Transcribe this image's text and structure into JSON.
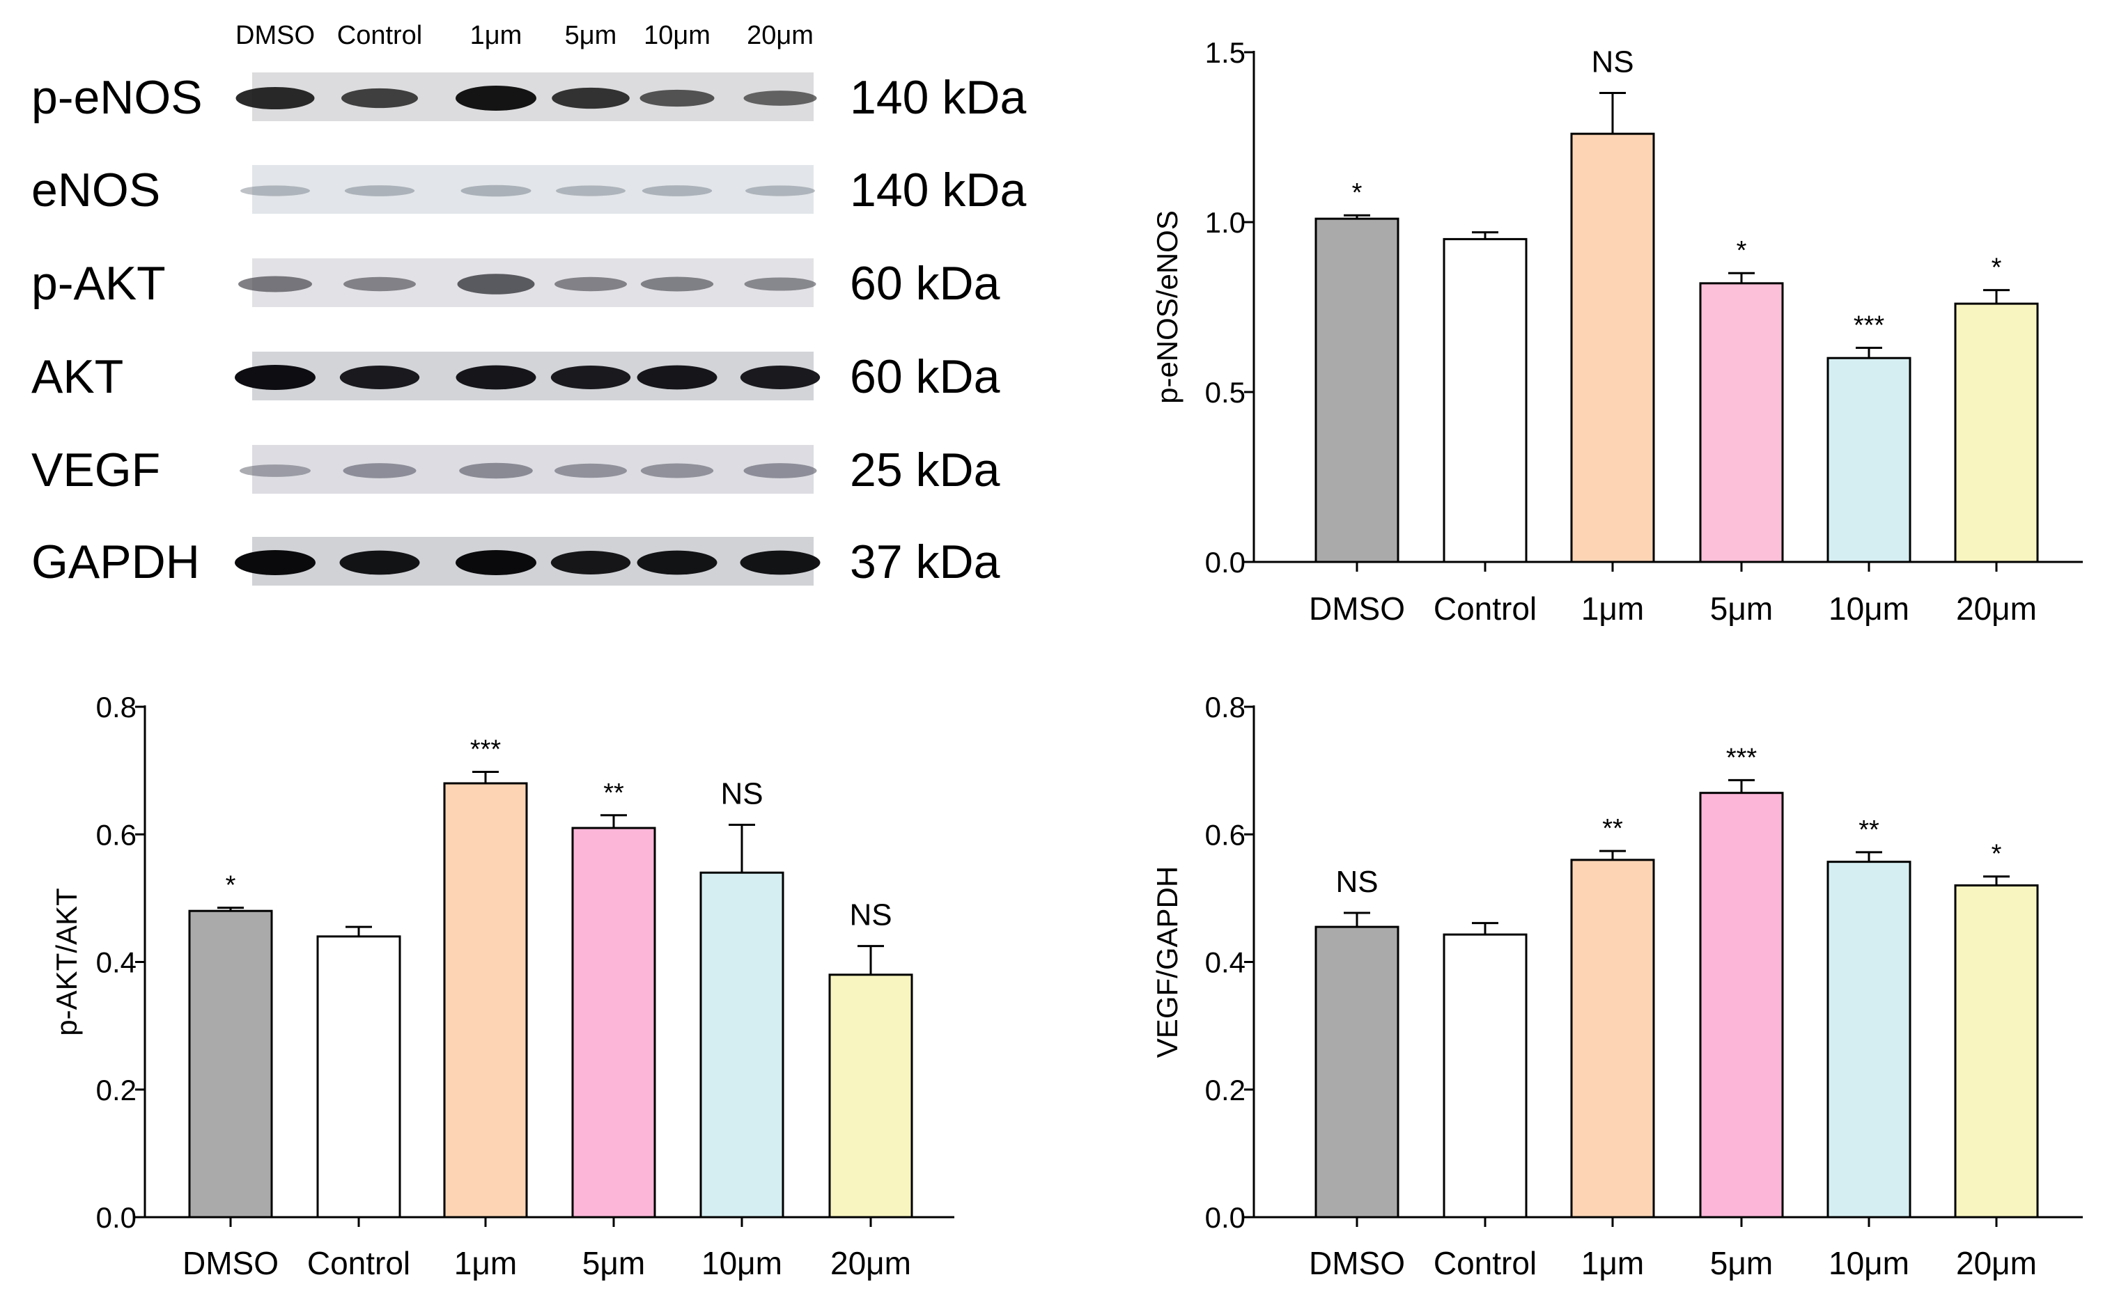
{
  "western_blot": {
    "lanes": [
      "DMSO",
      "Control",
      "1μm",
      "5μm",
      "10μm",
      "20μm"
    ],
    "rows": [
      {
        "protein": "p-eNOS",
        "size": "140 kDa",
        "band_intensity": [
          0.85,
          0.7,
          1.0,
          0.78,
          0.55,
          0.45
        ],
        "band_color": "#141414",
        "strip_color": "#dcdcde"
      },
      {
        "protein": "eNOS",
        "size": "140 kDa",
        "band_intensity": [
          0.2,
          0.22,
          0.25,
          0.2,
          0.22,
          0.2
        ],
        "band_color": "#6a7480",
        "strip_color": "#e2e6ea"
      },
      {
        "protein": "p-AKT",
        "size": "60 kDa",
        "band_intensity": [
          0.5,
          0.4,
          0.75,
          0.4,
          0.42,
          0.35
        ],
        "band_color": "#3a3a42",
        "strip_color": "#e2e2e6"
      },
      {
        "protein": "AKT",
        "size": "60 kDa",
        "band_intensity": [
          1.0,
          0.92,
          0.95,
          0.92,
          0.95,
          0.92
        ],
        "band_color": "#0e0e12",
        "strip_color": "#d2d4d8"
      },
      {
        "protein": "VEGF",
        "size": "25 kDa",
        "band_intensity": [
          0.3,
          0.45,
          0.48,
          0.4,
          0.42,
          0.45
        ],
        "band_color": "#5a5c68",
        "strip_color": "#dcdce2"
      },
      {
        "protein": "GAPDH",
        "size": "37 kDa",
        "band_intensity": [
          1.0,
          0.95,
          1.0,
          0.92,
          0.95,
          0.95
        ],
        "band_color": "#0a0a0c",
        "strip_color": "#d0d2d6"
      }
    ]
  },
  "chart_data": [
    {
      "type": "bar",
      "id": "peNOS",
      "categories": [
        "DMSO",
        "Control",
        "1μm",
        "5μm",
        "10μm",
        "20μm"
      ],
      "values": [
        1.01,
        0.95,
        1.26,
        0.82,
        0.6,
        0.76
      ],
      "errors": [
        0.01,
        0.02,
        0.12,
        0.03,
        0.03,
        0.04
      ],
      "significance": [
        "*",
        "",
        "NS",
        "*",
        "***",
        "*"
      ],
      "colors": [
        "#aaaaaa",
        "#ffffff",
        "#fdd5b5",
        "#fcc0d8",
        "#d5eef2",
        "#f8f5c0"
      ],
      "title": "",
      "xlabel": "",
      "ylabel": "p-eNOS/eNOS",
      "ylim": [
        0,
        1.5
      ],
      "yticks": [
        "0.0",
        "0.5",
        "1.0",
        "1.5"
      ],
      "grid": false
    },
    {
      "type": "bar",
      "id": "pAKT",
      "categories": [
        "DMSO",
        "Control",
        "1μm",
        "5μm",
        "10μm",
        "20μm"
      ],
      "values": [
        0.48,
        0.44,
        0.68,
        0.61,
        0.54,
        0.38
      ],
      "errors": [
        0.005,
        0.015,
        0.018,
        0.02,
        0.075,
        0.045
      ],
      "significance": [
        "*",
        "",
        "***",
        "**",
        "NS",
        "NS"
      ],
      "colors": [
        "#aaaaaa",
        "#ffffff",
        "#fdd5b5",
        "#fcb6d8",
        "#d5eef2",
        "#f8f5c0"
      ],
      "title": "",
      "xlabel": "",
      "ylabel": "p-AKT/AKT",
      "ylim": [
        0,
        0.8
      ],
      "yticks": [
        "0.0",
        "0.2",
        "0.4",
        "0.6",
        "0.8"
      ],
      "grid": false
    },
    {
      "type": "bar",
      "id": "VEGF",
      "categories": [
        "DMSO",
        "Control",
        "1μm",
        "5μm",
        "10μm",
        "20μm"
      ],
      "values": [
        0.455,
        0.443,
        0.56,
        0.665,
        0.557,
        0.52
      ],
      "errors": [
        0.022,
        0.018,
        0.014,
        0.02,
        0.015,
        0.014
      ],
      "significance": [
        "NS",
        "",
        "**",
        "***",
        "**",
        "*"
      ],
      "colors": [
        "#aaaaaa",
        "#ffffff",
        "#fdd5b5",
        "#fcb6d8",
        "#d5eef2",
        "#f8f5c0"
      ],
      "title": "",
      "xlabel": "",
      "ylabel": "VEGF/GAPDH",
      "ylim": [
        0,
        0.8
      ],
      "yticks": [
        "0.0",
        "0.2",
        "0.4",
        "0.6",
        "0.8"
      ],
      "grid": false
    }
  ]
}
